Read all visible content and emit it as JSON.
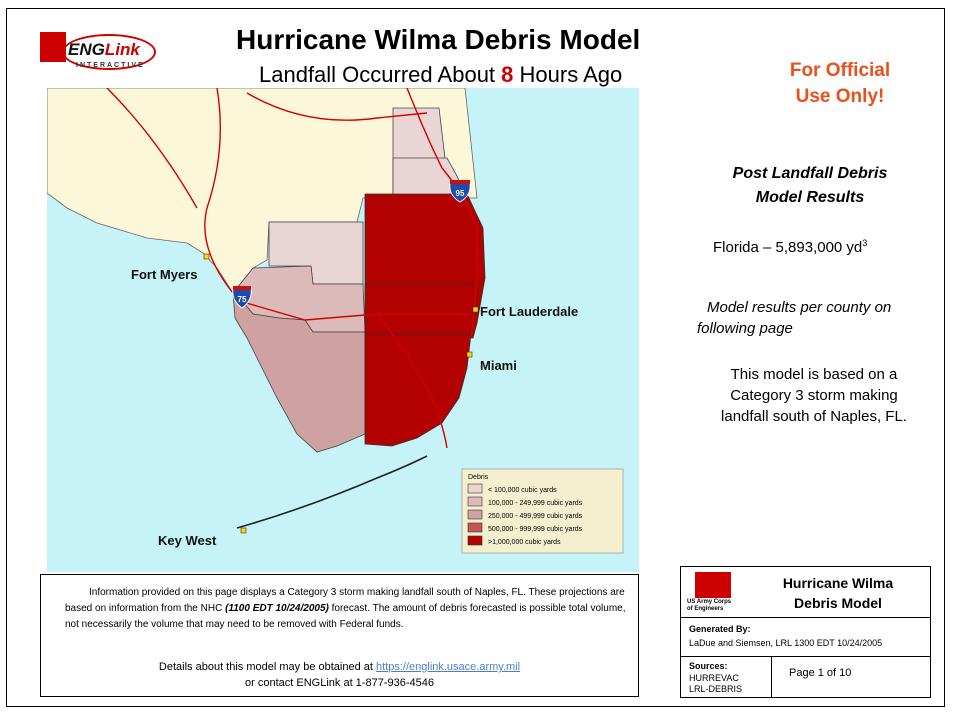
{
  "header": {
    "title": "Hurricane Wilma Debris Model",
    "subtitle_prefix": "Landfall Occurred About ",
    "subtitle_hours": "8",
    "subtitle_suffix": " Hours Ago",
    "official_line1": "For Official",
    "official_line2": "Use Only!"
  },
  "logo": {
    "brand_a": "ENG",
    "brand_b": "Link",
    "sub": "INTERACTIVE"
  },
  "map": {
    "cities": [
      "Fort Myers",
      "Fort Lauderdale",
      "Miami",
      "Key West"
    ],
    "shields": [
      "75",
      "95"
    ],
    "legend": {
      "title": "Debris",
      "items": [
        {
          "label": "< 100,000 cubic yards",
          "color": "#ead5d5"
        },
        {
          "label": "100,000 - 249,999 cubic yards",
          "color": "#dcbaba"
        },
        {
          "label": "250,000 - 499,999 cubic yards",
          "color": "#cfa2a2"
        },
        {
          "label": "500,000 - 999,999 cubic yards",
          "color": "#c55555"
        },
        {
          "label": ">1,000,000 cubic yards",
          "color": "#b30000"
        }
      ]
    },
    "colors": {
      "water": "#c6f3f7",
      "land": "#fcf7d8",
      "road": "#d40000"
    }
  },
  "results": {
    "heading_line1": "Post Landfall Debris",
    "heading_line2": "Model Results",
    "total_label": "Florida – 5,893,000 yd",
    "total_sup": "3",
    "note_line1": "Model results per county on",
    "note_line2": "following page",
    "basis_line1": "This model is based on a",
    "basis_line2": "Category 3 storm making",
    "basis_line3": "landfall south of Naples, FL."
  },
  "info": {
    "p1_a": "Information provided on this page displays a Category 3 storm making landfall south of Naples, FL. These projections are based on information from the NHC ",
    "p1_b": "(1100 EDT 10/24/2005)",
    "p1_c": " forecast. The amount of debris forecasted is possible total volume, not necessarily the volume that may need to be removed with Federal funds.",
    "p2_a": "Details about this model may be obtained at ",
    "p2_link": "https://englink.usace.army.mil",
    "p2_b": "or contact ENGLink at 1-877-936-4546"
  },
  "titleblock": {
    "usace_line1": "US Army Corps",
    "usace_line2": "of Engineers",
    "title_line1": "Hurricane Wilma",
    "title_line2": "Debris Model",
    "generated_label": "Generated By:",
    "generated_value": "LaDue and Siemsen, LRL 1300 EDT 10/24/2005",
    "sources_label": "Sources:",
    "source1": "HURREVAC",
    "source2": "LRL-DEBRIS",
    "page": "Page 1 of 10"
  }
}
